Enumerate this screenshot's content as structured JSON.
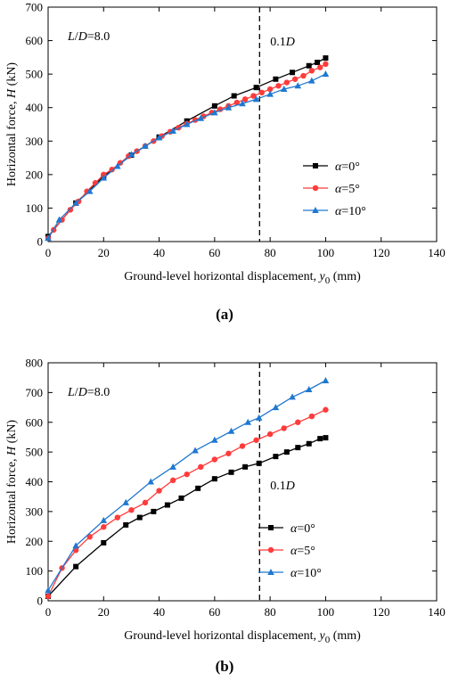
{
  "chart_data": [
    {
      "type": "line",
      "panel_label": "(a)",
      "x_label": "Ground-level horizontal displacement, y0 (mm)",
      "y_label": "Horizontal force, H (kN)",
      "xlim": [
        0,
        140
      ],
      "ylim": [
        0,
        700
      ],
      "x_ticks": [
        0,
        20,
        40,
        60,
        80,
        100,
        120,
        140
      ],
      "y_ticks": [
        0,
        100,
        200,
        300,
        400,
        500,
        600,
        700
      ],
      "annotation": "L/D=8.0",
      "reference_line": {
        "x": 76.2,
        "label": "0.1D"
      },
      "legend_position": "right",
      "series": [
        {
          "name": "α=0°",
          "color": "#000000",
          "marker": "square",
          "x": [
            0,
            10,
            20,
            30,
            40,
            50,
            60,
            67,
            75,
            82,
            88,
            94,
            97,
            100
          ],
          "y": [
            15,
            115,
            195,
            258,
            312,
            360,
            405,
            435,
            460,
            485,
            505,
            525,
            535,
            548
          ]
        },
        {
          "name": "α=5°",
          "color": "#ff3b3b",
          "marker": "circle",
          "x": [
            0,
            2,
            5,
            8,
            11,
            14,
            17,
            20,
            23,
            26,
            29,
            32,
            35,
            38,
            41,
            44,
            47,
            50,
            53,
            56,
            59,
            62,
            65,
            68,
            71,
            74,
            77,
            80,
            83,
            86,
            89,
            92,
            95,
            98,
            100
          ],
          "y": [
            10,
            35,
            65,
            95,
            120,
            150,
            175,
            200,
            215,
            235,
            255,
            270,
            285,
            300,
            315,
            328,
            340,
            352,
            363,
            374,
            385,
            395,
            405,
            415,
            425,
            435,
            445,
            455,
            465,
            475,
            485,
            495,
            510,
            520,
            530
          ]
        },
        {
          "name": "α=10°",
          "color": "#1f78d0",
          "marker": "triangle",
          "x": [
            0,
            4,
            10,
            15,
            20,
            25,
            30,
            35,
            40,
            45,
            50,
            55,
            60,
            65,
            70,
            75,
            80,
            85,
            90,
            95,
            100
          ],
          "y": [
            10,
            65,
            115,
            150,
            190,
            225,
            260,
            285,
            310,
            330,
            350,
            368,
            385,
            400,
            412,
            425,
            440,
            455,
            465,
            480,
            500
          ]
        }
      ]
    },
    {
      "type": "line",
      "panel_label": "(b)",
      "x_label": "Ground-level horizontal displacement, y0 (mm)",
      "y_label": "Horizontal force, H (kN)",
      "xlim": [
        0,
        140
      ],
      "ylim": [
        0,
        800
      ],
      "x_ticks": [
        0,
        20,
        40,
        60,
        80,
        100,
        120,
        140
      ],
      "y_ticks": [
        0,
        100,
        200,
        300,
        400,
        500,
        600,
        700,
        800
      ],
      "annotation": "L/D=8.0",
      "reference_line": {
        "x": 76.2,
        "label": "0.1D"
      },
      "legend_position": "bottom-right",
      "series": [
        {
          "name": "α=0°",
          "color": "#000000",
          "marker": "square",
          "x": [
            0,
            10,
            20,
            28,
            33,
            38,
            43,
            48,
            54,
            60,
            66,
            71,
            76,
            82,
            86,
            90,
            94,
            98,
            100
          ],
          "y": [
            15,
            115,
            195,
            255,
            280,
            300,
            322,
            345,
            378,
            410,
            432,
            450,
            462,
            485,
            500,
            515,
            528,
            545,
            548
          ]
        },
        {
          "name": "α=5°",
          "color": "#ff3b3b",
          "marker": "circle",
          "x": [
            0,
            5,
            10,
            15,
            20,
            25,
            30,
            35,
            40,
            45,
            50,
            55,
            60,
            65,
            70,
            75,
            80,
            85,
            90,
            95,
            100
          ],
          "y": [
            15,
            110,
            170,
            215,
            248,
            280,
            305,
            330,
            370,
            405,
            425,
            450,
            475,
            495,
            520,
            540,
            560,
            580,
            600,
            620,
            642
          ]
        },
        {
          "name": "α=10°",
          "color": "#1f78d0",
          "marker": "triangle",
          "x": [
            0,
            10,
            20,
            28,
            37,
            45,
            53,
            60,
            66,
            72,
            76,
            82,
            88,
            94,
            100
          ],
          "y": [
            35,
            185,
            270,
            330,
            400,
            450,
            505,
            540,
            570,
            600,
            615,
            650,
            685,
            710,
            740
          ]
        }
      ]
    }
  ]
}
